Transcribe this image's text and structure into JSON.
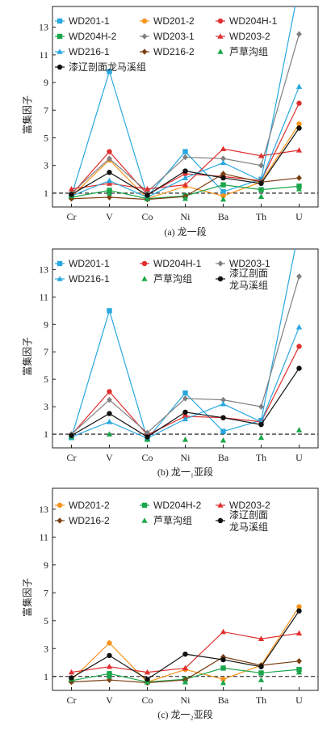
{
  "chart_data": [
    {
      "type": "line",
      "title": "(a) 龙一段",
      "ylabel": "富集因子",
      "categories": [
        "Cr",
        "V",
        "Co",
        "Ni",
        "Ba",
        "Th",
        "U"
      ],
      "yticks": [
        1,
        3,
        5,
        7,
        9,
        11,
        13
      ],
      "ylim": [
        0,
        14.5
      ],
      "reference_line": 1,
      "legend_columns": 3,
      "series": [
        {
          "name": "WD201-1",
          "color": "#29a8e0",
          "marker": "square",
          "line": true,
          "values": [
            0.8,
            9.8,
            0.75,
            4.0,
            1.1,
            2.0,
            16.0
          ]
        },
        {
          "name": "WD201-2",
          "color": "#f7941d",
          "marker": "circle",
          "line": true,
          "values": [
            0.75,
            3.4,
            0.6,
            1.5,
            0.8,
            1.8,
            6.0
          ]
        },
        {
          "name": "WD204H-1",
          "color": "#e03030",
          "marker": "circle",
          "line": true,
          "values": [
            0.9,
            4.0,
            0.9,
            2.4,
            2.2,
            1.9,
            7.5
          ]
        },
        {
          "name": "WD204H-2",
          "color": "#1aa64a",
          "marker": "square",
          "line": true,
          "values": [
            0.7,
            1.2,
            0.6,
            0.8,
            1.6,
            1.25,
            1.5
          ]
        },
        {
          "name": "WD203-1",
          "color": "#808080",
          "marker": "diamond",
          "line": true,
          "values": [
            1.0,
            3.5,
            1.1,
            3.6,
            3.5,
            3.0,
            12.5
          ]
        },
        {
          "name": "WD203-2",
          "color": "#e03030",
          "marker": "triangle",
          "line": true,
          "values": [
            1.3,
            1.7,
            1.3,
            1.6,
            4.2,
            3.7,
            4.1
          ]
        },
        {
          "name": "WD216-1",
          "color": "#29a8e0",
          "marker": "triangle",
          "line": true,
          "values": [
            0.8,
            1.9,
            0.7,
            2.1,
            3.2,
            1.9,
            8.7
          ]
        },
        {
          "name": "WD216-2",
          "color": "#7b3f14",
          "marker": "diamond",
          "line": true,
          "values": [
            0.6,
            0.7,
            0.55,
            0.75,
            2.4,
            1.8,
            2.1
          ]
        },
        {
          "name": "芦草沟组",
          "color": "#1aa64a",
          "marker": "triangle",
          "line": false,
          "values": [
            0.8,
            1.0,
            0.6,
            0.6,
            0.55,
            0.75,
            1.3
          ]
        },
        {
          "name": "漆辽剖面龙马溪组",
          "color": "#111111",
          "marker": "circle",
          "line": true,
          "values": [
            0.9,
            2.5,
            0.85,
            2.6,
            2.1,
            1.7,
            5.7
          ]
        }
      ]
    },
    {
      "type": "line",
      "title": "(b) 龙一₁亚段",
      "ylabel": "富集因子",
      "categories": [
        "Cr",
        "V",
        "Co",
        "Ni",
        "Ba",
        "Th",
        "U"
      ],
      "yticks": [
        1,
        3,
        5,
        7,
        9,
        11,
        13
      ],
      "ylim": [
        0,
        14.5
      ],
      "reference_line": 1,
      "legend_columns": 3,
      "series": [
        {
          "name": "WD201-1",
          "color": "#29a8e0",
          "marker": "square",
          "line": true,
          "values": [
            0.75,
            10.0,
            0.65,
            4.0,
            1.2,
            2.0,
            16.0
          ]
        },
        {
          "name": "WD204H-1",
          "color": "#e03030",
          "marker": "circle",
          "line": true,
          "values": [
            0.95,
            4.1,
            0.95,
            2.3,
            2.2,
            1.9,
            7.4
          ]
        },
        {
          "name": "WD203-1",
          "color": "#808080",
          "marker": "diamond",
          "line": true,
          "values": [
            1.0,
            3.5,
            1.1,
            3.6,
            3.5,
            3.0,
            12.5
          ]
        },
        {
          "name": "WD216-1",
          "color": "#29a8e0",
          "marker": "triangle",
          "line": true,
          "values": [
            0.8,
            1.9,
            0.7,
            2.1,
            3.2,
            1.9,
            8.8
          ]
        },
        {
          "name": "芦草沟组",
          "color": "#1aa64a",
          "marker": "triangle",
          "line": false,
          "values": [
            0.8,
            1.0,
            0.6,
            0.6,
            0.55,
            0.75,
            1.3
          ]
        },
        {
          "name": "漆辽剖面龙马溪组",
          "color": "#111111",
          "marker": "circle",
          "line": true,
          "values": [
            0.9,
            2.5,
            0.8,
            2.6,
            2.2,
            1.7,
            5.8
          ]
        }
      ]
    },
    {
      "type": "line",
      "title": "(c) 龙一₂亚段",
      "ylabel": "富集因子",
      "categories": [
        "Cr",
        "V",
        "Co",
        "Ni",
        "Ba",
        "Th",
        "U"
      ],
      "yticks": [
        1,
        3,
        5,
        7,
        9,
        11,
        13
      ],
      "ylim": [
        0,
        14.5
      ],
      "reference_line": 1,
      "legend_columns": 3,
      "series": [
        {
          "name": "WD201-2",
          "color": "#f7941d",
          "marker": "circle",
          "line": true,
          "values": [
            0.75,
            3.4,
            0.6,
            1.5,
            0.8,
            1.8,
            6.0
          ]
        },
        {
          "name": "WD204H-2",
          "color": "#1aa64a",
          "marker": "square",
          "line": true,
          "values": [
            0.7,
            1.2,
            0.6,
            0.8,
            1.6,
            1.25,
            1.5
          ]
        },
        {
          "name": "WD203-2",
          "color": "#e03030",
          "marker": "triangle",
          "line": true,
          "values": [
            1.3,
            1.7,
            1.3,
            1.6,
            4.2,
            3.7,
            4.1
          ]
        },
        {
          "name": "WD216-2",
          "color": "#7b3f14",
          "marker": "diamond",
          "line": true,
          "values": [
            0.6,
            0.75,
            0.55,
            0.75,
            2.4,
            1.8,
            2.1
          ]
        },
        {
          "name": "芦草沟组",
          "color": "#1aa64a",
          "marker": "triangle",
          "line": false,
          "values": [
            0.8,
            1.0,
            0.6,
            0.6,
            0.55,
            0.75,
            1.3
          ]
        },
        {
          "name": "漆辽剖面龙马溪组",
          "color": "#111111",
          "marker": "circle",
          "line": true,
          "values": [
            0.9,
            2.5,
            0.8,
            2.6,
            2.2,
            1.7,
            5.7
          ]
        }
      ]
    }
  ]
}
